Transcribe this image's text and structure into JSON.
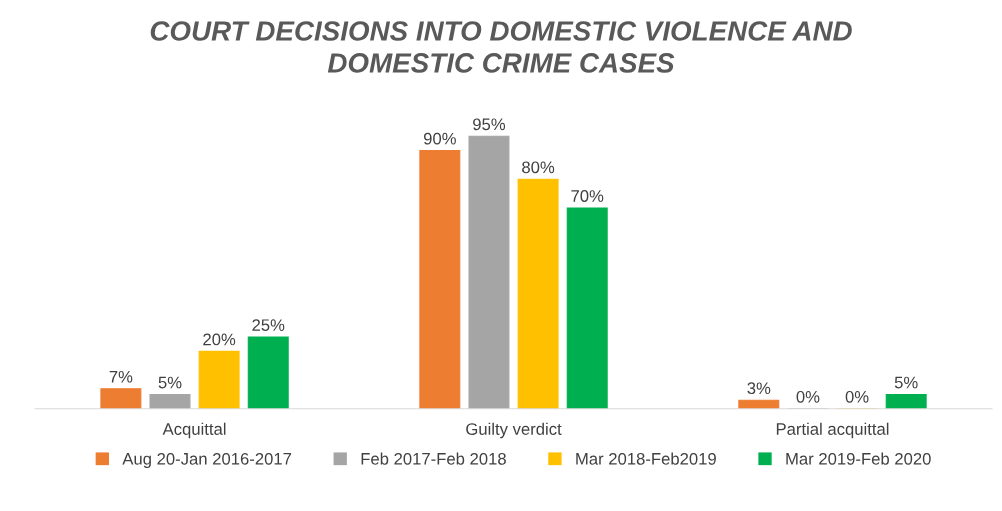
{
  "chart_data": {
    "type": "bar",
    "title": "COURT DECISIONS INTO DOMESTIC VIOLENCE AND DOMESTIC CRIME CASES",
    "categories": [
      "Acquittal",
      "Guilty verdict",
      "Partial acquittal"
    ],
    "series": [
      {
        "name": "Aug 20-Jan 2016-2017",
        "color": "#ed7d31",
        "values": [
          7,
          90,
          3
        ],
        "value_labels": [
          "7%",
          "90%",
          "3%"
        ]
      },
      {
        "name": "Feb 2017-Feb 2018",
        "color": "#a5a5a5",
        "values": [
          5,
          95,
          0
        ],
        "value_labels": [
          "5%",
          "95%",
          "0%"
        ]
      },
      {
        "name": "Mar 2018-Feb2019",
        "color": "#ffc000",
        "values": [
          20,
          80,
          0
        ],
        "value_labels": [
          "20%",
          "80%",
          "0%"
        ]
      },
      {
        "name": "Mar 2019-Feb 2020",
        "color": "#00b050",
        "values": [
          25,
          70,
          5
        ],
        "value_labels": [
          "25%",
          "70%",
          "5%"
        ]
      }
    ],
    "legend": "bottom",
    "grid": false,
    "tick_labels": "x"
  }
}
